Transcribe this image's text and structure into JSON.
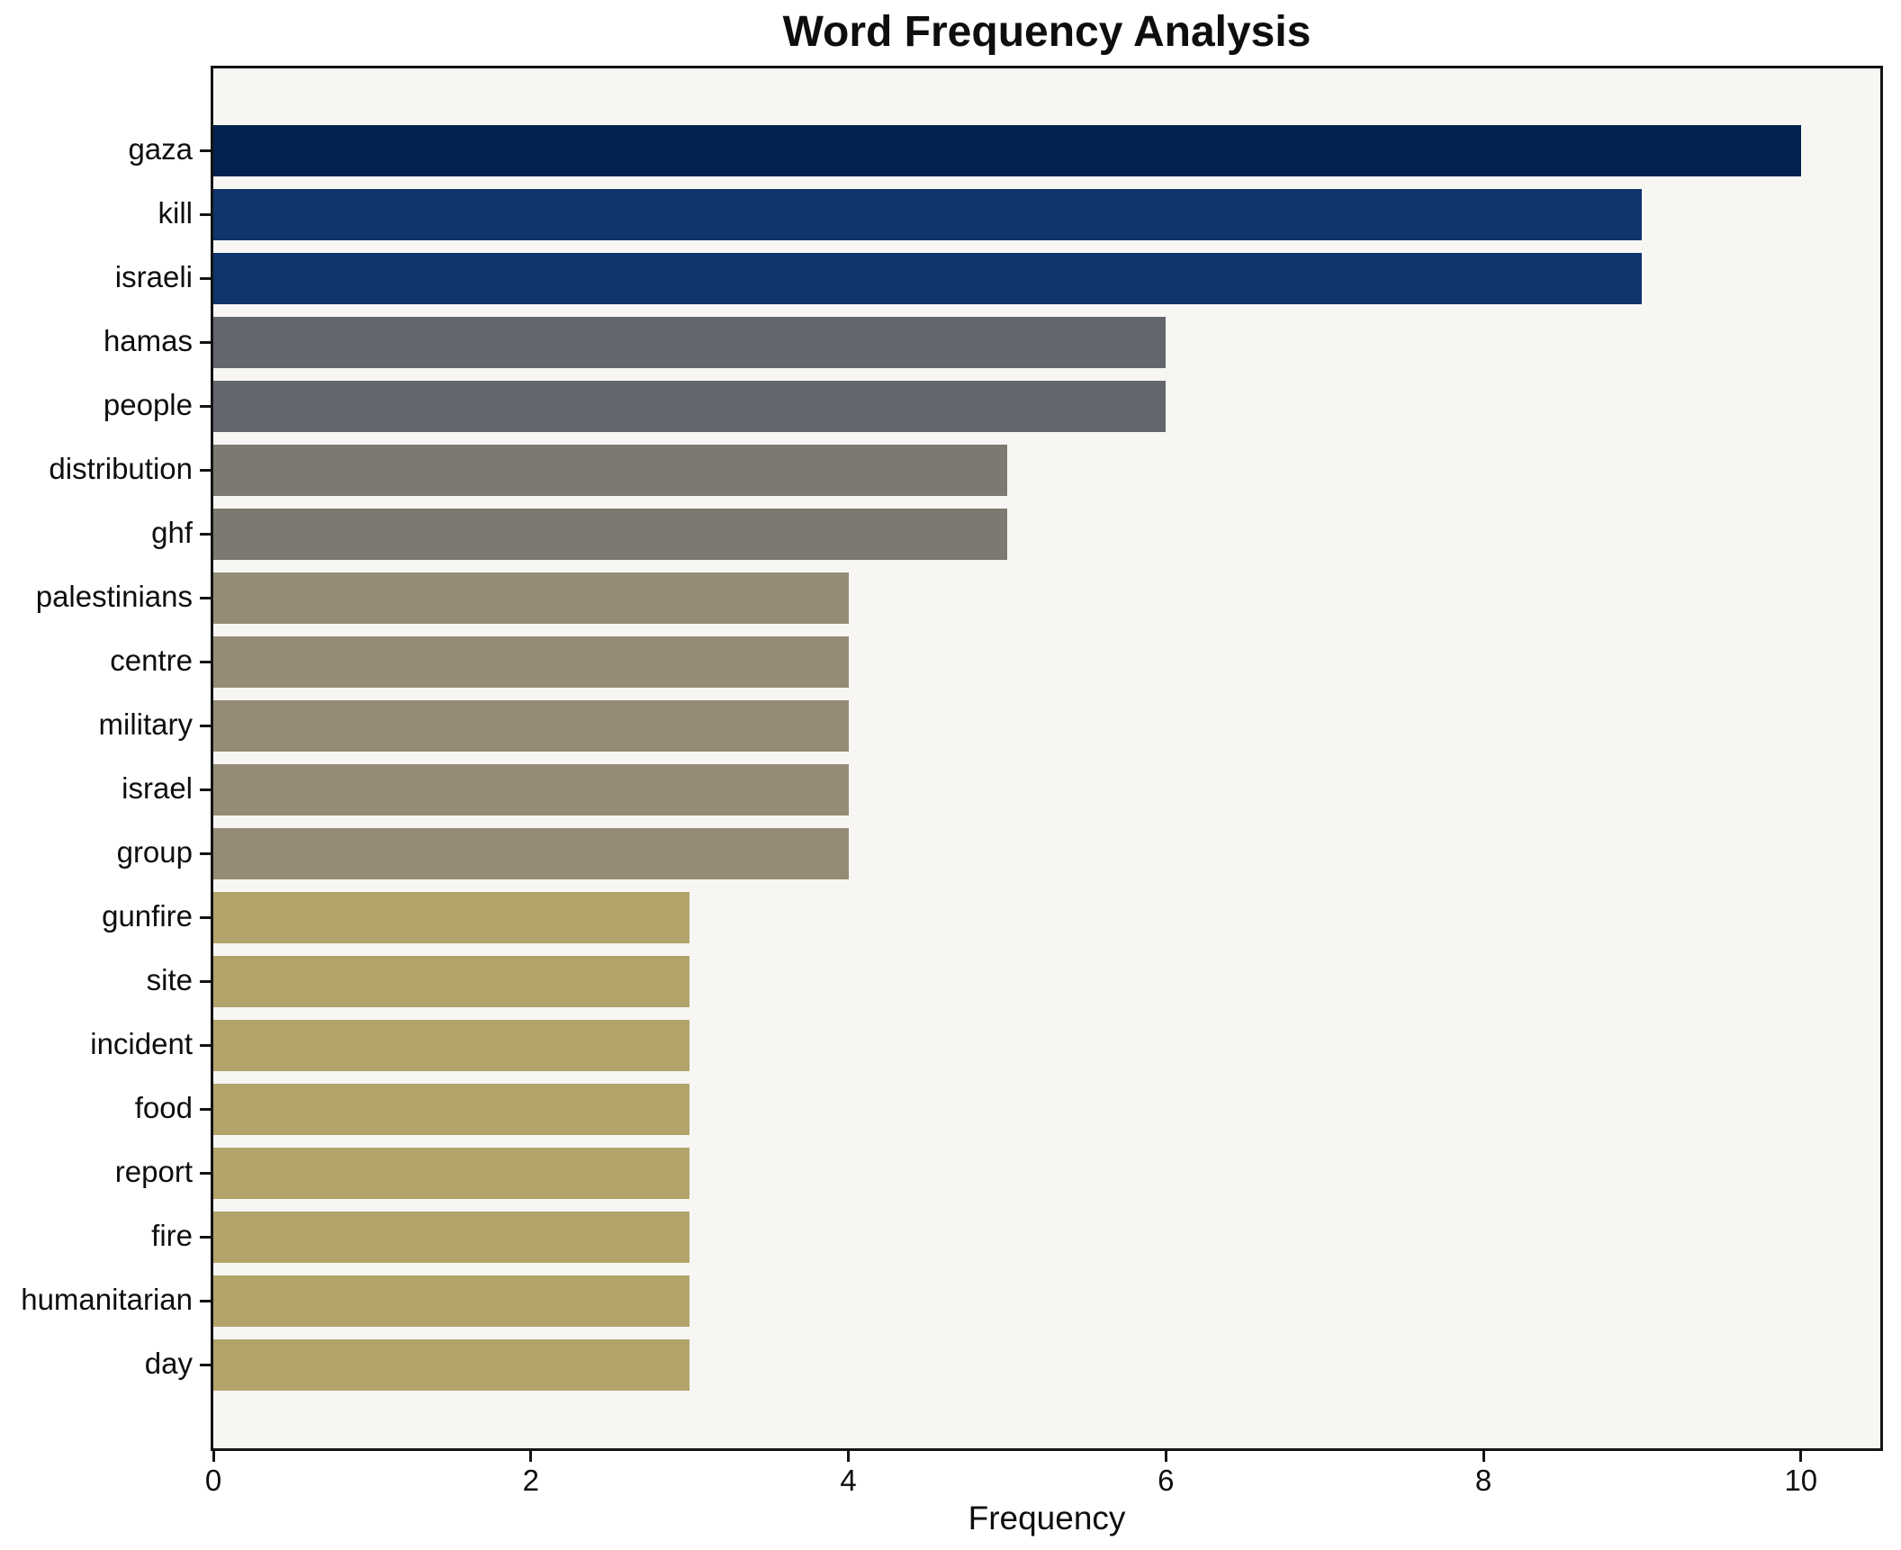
{
  "title": "Word Frequency Analysis",
  "xlabel": "Frequency",
  "chart_data": {
    "type": "bar",
    "orientation": "horizontal",
    "title": "Word Frequency Analysis",
    "xlabel": "Frequency",
    "ylabel": "",
    "xlim": [
      0,
      10.5
    ],
    "xticks": [
      0,
      2,
      4,
      6,
      8,
      10
    ],
    "grid": false,
    "legend": null,
    "plot_background": "#f7f6f3",
    "figure_background": "#ffffff",
    "spine_color": "#141414",
    "categories": [
      "gaza",
      "kill",
      "israeli",
      "hamas",
      "people",
      "distribution",
      "ghf",
      "palestinians",
      "centre",
      "military",
      "israel",
      "group",
      "gunfire",
      "site",
      "incident",
      "food",
      "report",
      "fire",
      "humanitarian",
      "day"
    ],
    "values": [
      10,
      9,
      9,
      6,
      6,
      5,
      5,
      4,
      4,
      4,
      4,
      4,
      3,
      3,
      3,
      3,
      3,
      3,
      3,
      3
    ],
    "bar_colors": [
      "#03224d",
      "#10346c",
      "#10346c",
      "#64666f",
      "#64666f",
      "#7b7970",
      "#7b7970",
      "#948c74",
      "#948c74",
      "#948c74",
      "#948c74",
      "#948c74",
      "#b2a36a",
      "#b2a36a",
      "#b2a36a",
      "#b2a36a",
      "#b2a36a",
      "#b2a36a",
      "#b2a36a",
      "#b2a36a"
    ]
  }
}
